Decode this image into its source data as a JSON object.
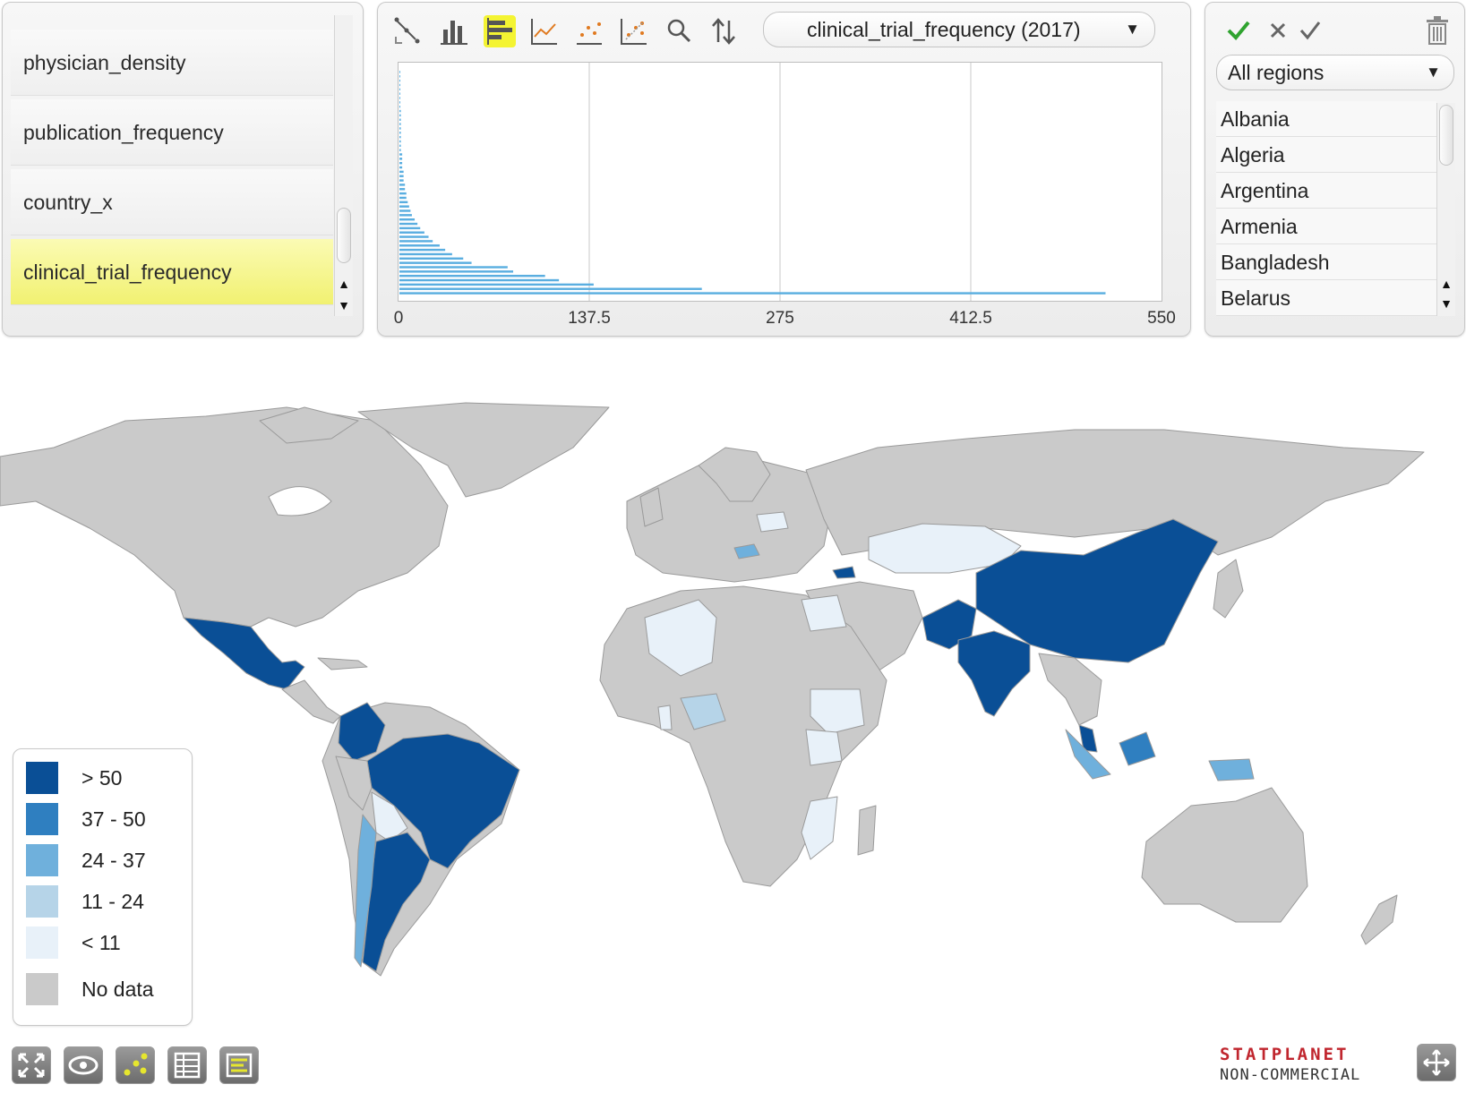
{
  "indicator_panel": {
    "items": [
      {
        "label": "physician_density",
        "selected": false
      },
      {
        "label": "publication_frequency",
        "selected": false
      },
      {
        "label": "country_x",
        "selected": false
      },
      {
        "label": "clinical_trial_frequency",
        "selected": true
      }
    ]
  },
  "toolbar": {
    "tools": [
      "scatter-connect-icon",
      "bar-chart-icon",
      "horizontal-bar-chart-icon",
      "line-chart-icon",
      "scatter-plot-icon",
      "bubble-plot-icon",
      "zoom-icon",
      "sort-icon"
    ],
    "active_tool": "horizontal-bar-chart-icon",
    "series_select": "clinical_trial_frequency (2017)"
  },
  "chart_data": {
    "type": "bar",
    "orientation": "horizontal",
    "xlim": [
      0,
      550
    ],
    "x_ticks": [
      "0",
      "137.5",
      "275",
      "412.5",
      "550"
    ],
    "values": [
      509,
      218,
      140,
      115,
      105,
      82,
      78,
      52,
      46,
      38,
      33,
      29,
      24,
      21,
      18,
      15,
      13,
      11,
      9,
      8,
      7,
      6,
      5,
      5,
      4,
      4,
      3,
      3,
      3,
      2,
      2,
      2,
      2,
      1,
      1,
      1,
      1,
      1,
      1,
      1,
      1,
      1,
      1,
      0.5,
      0.5,
      0.5,
      0.5,
      0.5,
      0.5,
      0.5,
      0.5,
      0.5
    ],
    "bar_color": "#5aaee0",
    "grid": true
  },
  "region_panel": {
    "region_select": "All regions",
    "countries": [
      "Albania",
      "Algeria",
      "Argentina",
      "Armenia",
      "Bangladesh",
      "Belarus"
    ],
    "check_color": "#2fa32f"
  },
  "legend": {
    "items": [
      {
        "label": "> 50",
        "color": "#0a4f96"
      },
      {
        "label": "37 - 50",
        "color": "#2f7fc0"
      },
      {
        "label": "24 - 37",
        "color": "#6fb0dc"
      },
      {
        "label": "11 - 24",
        "color": "#b6d4e8"
      },
      {
        "label": "< 11",
        "color": "#e8f1f9"
      },
      {
        "label": "No data",
        "color": "#cacaca"
      }
    ]
  },
  "map": {
    "no_data_color": "#cacaca",
    "ocean_color": "#ffffff"
  },
  "bottom_bar": {
    "buttons": [
      "fullscreen-icon",
      "eye-icon",
      "scatter-icon",
      "table-icon",
      "list-icon"
    ]
  },
  "brand": {
    "line1": "STATPLANET",
    "line2": "NON-COMMERCIAL"
  }
}
